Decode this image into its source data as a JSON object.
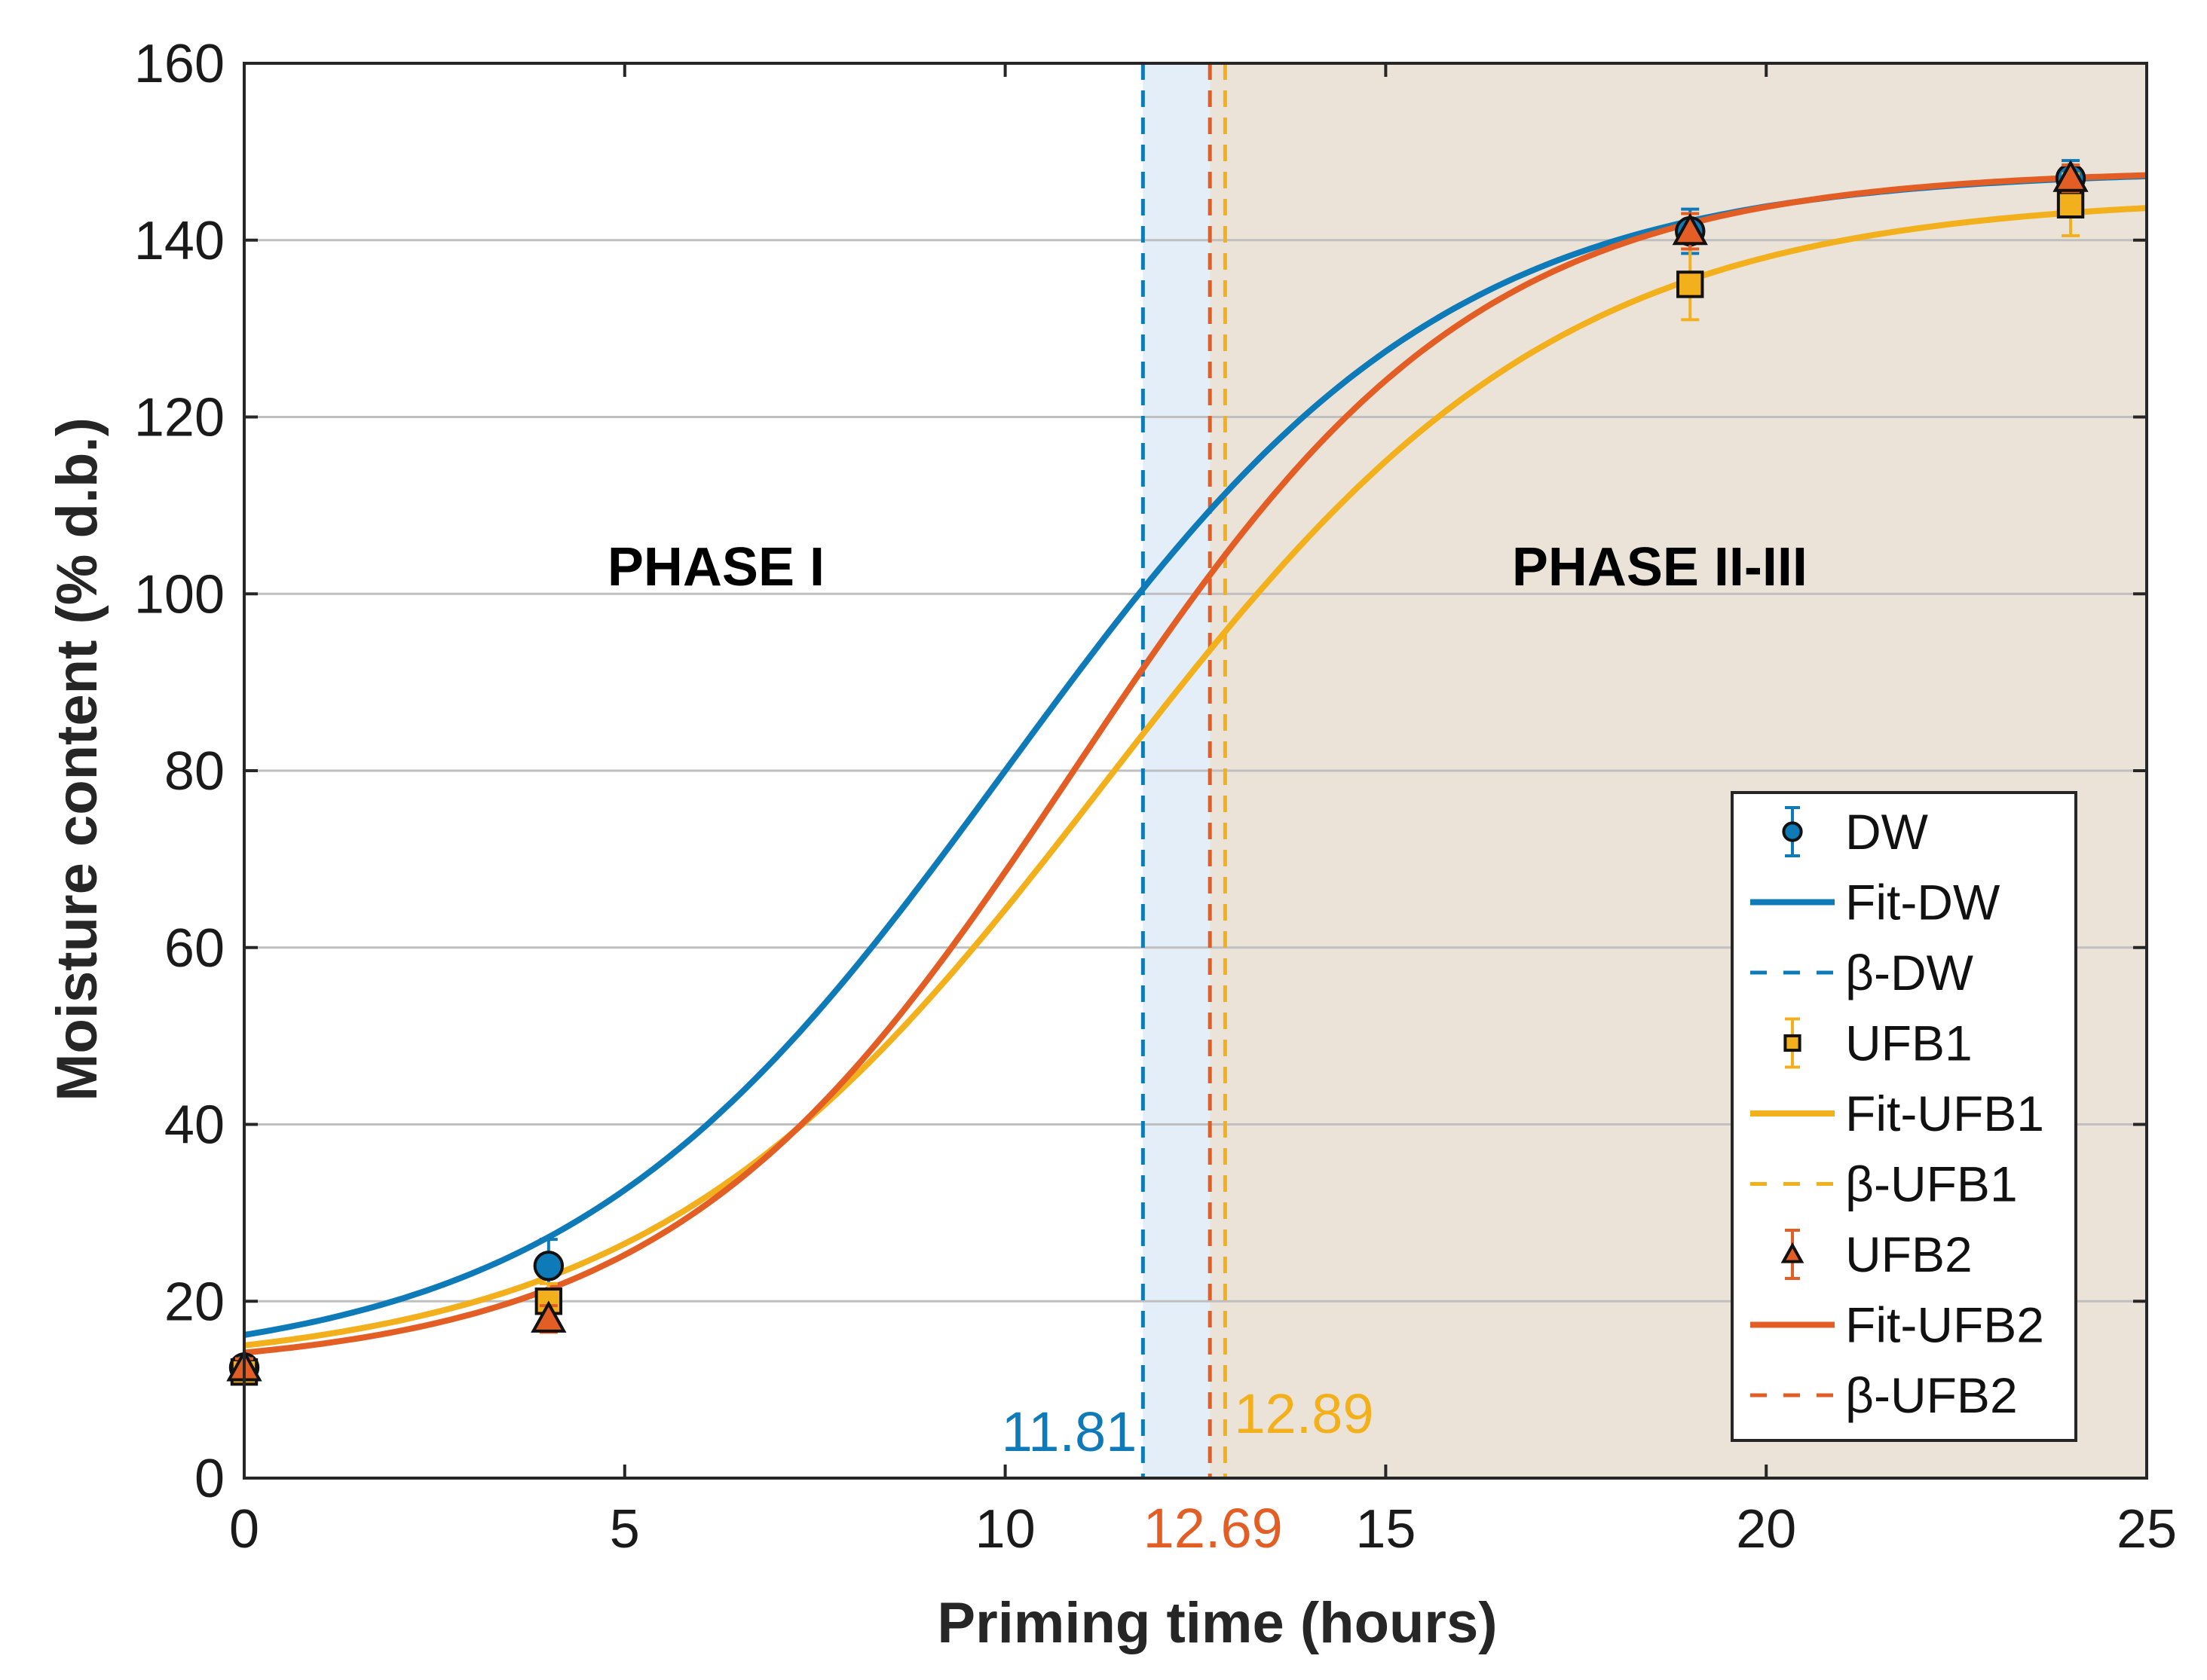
{
  "chart_data": {
    "type": "line",
    "xlabel": "Priming time (hours)",
    "ylabel": "Moisture content (% d.b.)",
    "xlim": [
      0,
      25
    ],
    "ylim": [
      0,
      160
    ],
    "xticks": [
      0,
      5,
      10,
      15,
      20,
      25
    ],
    "yticks": [
      0,
      20,
      40,
      60,
      80,
      100,
      120,
      140,
      160
    ],
    "grid": "horizontal",
    "legend_position": "bottom-right",
    "regions": [
      {
        "label": "PHASE I",
        "x_range": [
          0,
          11.81
        ],
        "color": "#ffffff",
        "label_x": 6.2,
        "label_y": 103
      },
      {
        "label": "",
        "x_range": [
          11.81,
          12.69
        ],
        "color": "#e3eef8",
        "label_x": null,
        "label_y": null
      },
      {
        "label": "PHASE II-III",
        "x_range": [
          12.69,
          25
        ],
        "color": "#ebe3d8",
        "label_x": 18.6,
        "label_y": 103
      }
    ],
    "series": [
      {
        "name": "DW",
        "color": "#0f7ab8",
        "marker": "circle",
        "fit_name": "Fit-DW",
        "beta_name": "β-DW",
        "beta": 11.81,
        "beta_label": "11.81",
        "beta_label_pos": "bottom-left",
        "points": [
          {
            "x": 0,
            "y": 12.5,
            "err": 1.0
          },
          {
            "x": 4,
            "y": 24,
            "err": 3.0
          },
          {
            "x": 19,
            "y": 141,
            "err": 2.5
          },
          {
            "x": 24,
            "y": 147,
            "err": 2.0
          }
        ],
        "fit": {
          "A": 12,
          "K": 148,
          "m": 10.0,
          "s": 2.9
        }
      },
      {
        "name": "UFB1",
        "color": "#f2b01c",
        "marker": "square",
        "fit_name": "Fit-UFB1",
        "beta_name": "β-UFB1",
        "beta": 12.89,
        "beta_label": "12.89",
        "beta_label_pos": "bottom-right",
        "points": [
          {
            "x": 0,
            "y": 12,
            "err": 1.0
          },
          {
            "x": 4,
            "y": 20,
            "err": 2.0
          },
          {
            "x": 19,
            "y": 135,
            "err": 4.0
          },
          {
            "x": 24,
            "y": 144,
            "err": 3.5
          }
        ],
        "fit": {
          "A": 12,
          "K": 145,
          "m": 11.3,
          "s": 3.0
        }
      },
      {
        "name": "UFB2",
        "color": "#e35e25",
        "marker": "triangle",
        "fit_name": "Fit-UFB2",
        "beta_name": "β-UFB2",
        "beta": 12.69,
        "beta_label": "12.69",
        "beta_label_pos": "below-axis",
        "points": [
          {
            "x": 0,
            "y": 12.5,
            "err": 1.0
          },
          {
            "x": 4,
            "y": 18,
            "err": 1.5
          },
          {
            "x": 19,
            "y": 141,
            "err": 2.0
          },
          {
            "x": 24,
            "y": 147,
            "err": 1.5
          }
        ],
        "fit": {
          "A": 12,
          "K": 148,
          "m": 10.9,
          "s": 2.65
        }
      }
    ]
  }
}
